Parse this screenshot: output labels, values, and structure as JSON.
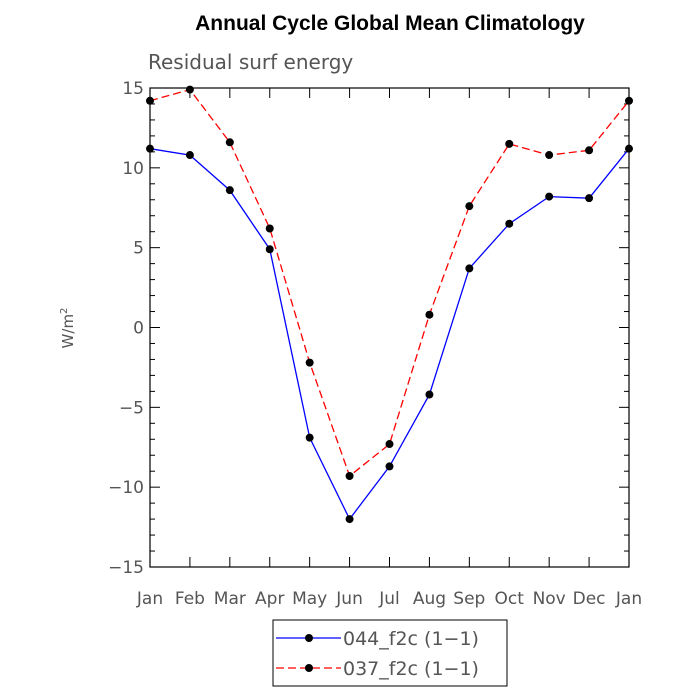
{
  "chart_data": {
    "type": "line",
    "title": "Annual Cycle Global Mean Climatology",
    "subtitle": "Residual surf energy",
    "xlabel": "",
    "ylabel": "W/m",
    "ylabel_superscript": "2",
    "ylim": [
      -15,
      15
    ],
    "yticks": [
      -15,
      -10,
      -5,
      0,
      5,
      10,
      15
    ],
    "ytick_labels": [
      "−15",
      "−10",
      "−5",
      "0",
      "5",
      "10",
      "15"
    ],
    "minor_tick_step": 1,
    "categories": [
      "Jan",
      "Feb",
      "Mar",
      "Apr",
      "May",
      "Jun",
      "Jul",
      "Aug",
      "Sep",
      "Oct",
      "Nov",
      "Dec",
      "Jan"
    ],
    "grid": false,
    "legend_position": "bottom-center",
    "series": [
      {
        "name": "044_f2c (1−1)",
        "color": "#0000ff",
        "line_style": "solid",
        "marker": "circle",
        "values": [
          11.2,
          10.8,
          8.6,
          4.9,
          -6.9,
          -12.0,
          -8.7,
          -4.2,
          3.7,
          6.5,
          8.2,
          8.1,
          11.2
        ]
      },
      {
        "name": "037_f2c (1−1)",
        "color": "#ff0000",
        "line_style": "dashed",
        "marker": "circle",
        "values": [
          14.2,
          14.9,
          11.6,
          6.2,
          -2.2,
          -9.3,
          -7.3,
          0.8,
          7.6,
          11.5,
          10.8,
          11.1,
          14.2
        ]
      }
    ]
  }
}
